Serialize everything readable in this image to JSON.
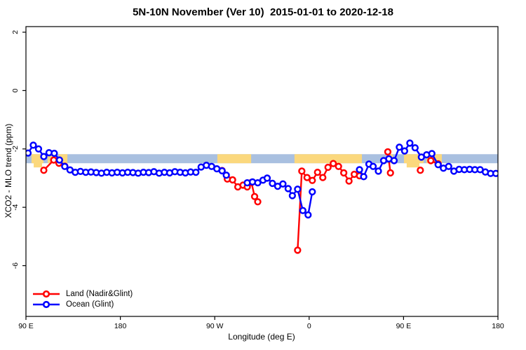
{
  "chart_data": {
    "type": "line",
    "title": "5N-10N November (Ver 10)  2015-01-01 to 2020-12-18",
    "xlabel": "Longitude (deg E)",
    "ylabel": "XCO2 - MLO trend (ppm)",
    "xlim": [
      90,
      540
    ],
    "ylim": [
      -7.8,
      2.2
    ],
    "grid": false,
    "legend_position": "bottom-left",
    "x_ticks": [
      {
        "lon": 90,
        "label": "90 E"
      },
      {
        "lon": 180,
        "label": "180"
      },
      {
        "lon": 270,
        "label": "90 W"
      },
      {
        "lon": 360,
        "label": "0"
      },
      {
        "lon": 450,
        "label": "90 E"
      },
      {
        "lon": 540,
        "label": "180"
      }
    ],
    "y_ticks": [
      {
        "value": 2,
        "label": "2"
      },
      {
        "value": 0,
        "label": "0"
      },
      {
        "value": -2,
        "label": "-2"
      },
      {
        "value": -4,
        "label": "-4"
      },
      {
        "value": -6,
        "label": "-6"
      }
    ],
    "map_strip": {
      "ocean_color": "#a9c0e0",
      "land_color": "#fbd87d",
      "value_top": -2.18,
      "value_bottom": -2.49,
      "land_patches": [
        {
          "lon": [
            95.3,
            106.7
          ]
        },
        {
          "lon": [
            97.4,
            105.4
          ],
          "below": true
        },
        {
          "lon": [
            110.7,
            118.7
          ]
        },
        {
          "lon": [
            121.4,
            129.5
          ]
        },
        {
          "lon": [
            272.5,
            304.7
          ]
        },
        {
          "lon": [
            346.0,
            410.3
          ]
        },
        {
          "lon": [
            435.0,
            439.7
          ]
        },
        {
          "lon": [
            450.4,
            469.1
          ]
        },
        {
          "lon": [
            453.0,
            465.1
          ],
          "below": true
        },
        {
          "lon": [
            471.8,
            475.8
          ]
        },
        {
          "lon": [
            479.8,
            486.5
          ]
        }
      ]
    },
    "series": [
      {
        "name": "Land (Nadir&Glint)",
        "color": "#ff0000",
        "segments": [
          [
            [
              107,
              -2.73
            ],
            [
              116.5,
              -2.38
            ],
            [
              121.5,
              -2.49
            ],
            [
              127,
              -2.59
            ]
          ],
          [
            [
              277,
              -2.74
            ],
            [
              282,
              -3.03
            ],
            [
              287,
              -3.06
            ],
            [
              292,
              -3.3
            ],
            [
              297,
              -3.24
            ],
            [
              301,
              -3.3
            ],
            [
              305,
              -3.15
            ],
            [
              308,
              -3.63
            ],
            [
              311,
              -3.81
            ]
          ],
          [
            [
              349,
              -5.47
            ],
            [
              353,
              -2.76
            ],
            [
              358,
              -2.98
            ],
            [
              363,
              -3.08
            ],
            [
              368,
              -2.8
            ],
            [
              373,
              -2.98
            ],
            [
              378,
              -2.63
            ],
            [
              383,
              -2.5
            ],
            [
              388,
              -2.6
            ],
            [
              393,
              -2.82
            ],
            [
              398,
              -3.1
            ],
            [
              403,
              -2.87
            ],
            [
              408,
              -2.92
            ]
          ],
          [
            [
              435,
              -2.1
            ],
            [
              437.5,
              -2.82
            ]
          ],
          [
            [
              476,
              -2.4
            ],
            [
              483,
              -2.51
            ]
          ]
        ],
        "isolated_points": [
          [
            466,
            -2.73
          ]
        ]
      },
      {
        "name": "Ocean (Glint)",
        "color": "#0000ff",
        "segments": [
          [
            [
              92,
              -2.14
            ],
            [
              97,
              -1.87
            ],
            [
              102,
              -2.0
            ],
            [
              107,
              -2.26
            ],
            [
              112,
              -2.13
            ],
            [
              117,
              -2.15
            ],
            [
              122,
              -2.38
            ],
            [
              127,
              -2.6
            ],
            [
              132,
              -2.72
            ],
            [
              137,
              -2.8
            ],
            [
              142,
              -2.77
            ],
            [
              147,
              -2.8
            ],
            [
              152,
              -2.79
            ],
            [
              157,
              -2.81
            ],
            [
              162,
              -2.83
            ],
            [
              167,
              -2.8
            ],
            [
              172,
              -2.82
            ],
            [
              177,
              -2.8
            ],
            [
              182,
              -2.82
            ],
            [
              187,
              -2.8
            ],
            [
              192,
              -2.81
            ],
            [
              197,
              -2.83
            ],
            [
              202,
              -2.8
            ],
            [
              207,
              -2.81
            ],
            [
              212,
              -2.78
            ],
            [
              217,
              -2.83
            ],
            [
              222,
              -2.8
            ],
            [
              227,
              -2.82
            ],
            [
              232,
              -2.78
            ],
            [
              237,
              -2.8
            ],
            [
              242,
              -2.82
            ],
            [
              247,
              -2.79
            ],
            [
              252,
              -2.8
            ],
            [
              257,
              -2.62
            ],
            [
              262,
              -2.56
            ],
            [
              267,
              -2.6
            ],
            [
              272,
              -2.68
            ],
            [
              277,
              -2.75
            ],
            [
              281,
              -2.9
            ]
          ],
          [
            [
              301,
              -3.16
            ],
            [
              306,
              -3.13
            ],
            [
              311,
              -3.16
            ],
            [
              316,
              -3.07
            ],
            [
              320,
              -3.0
            ],
            [
              325,
              -3.18
            ],
            [
              330,
              -3.28
            ],
            [
              335,
              -3.2
            ],
            [
              340,
              -3.36
            ],
            [
              344,
              -3.6
            ],
            [
              349,
              -3.38
            ],
            [
              354,
              -4.11
            ],
            [
              359,
              -4.26
            ],
            [
              363,
              -3.47
            ]
          ],
          [
            [
              408,
              -2.71
            ],
            [
              412,
              -2.95
            ],
            [
              417,
              -2.52
            ],
            [
              421,
              -2.6
            ],
            [
              426,
              -2.76
            ],
            [
              431,
              -2.4
            ],
            [
              436,
              -2.34
            ],
            [
              441,
              -2.4
            ],
            [
              446,
              -1.94
            ],
            [
              451,
              -2.07
            ],
            [
              456,
              -1.8
            ],
            [
              461,
              -1.96
            ],
            [
              467,
              -2.28
            ],
            [
              472,
              -2.2
            ],
            [
              477,
              -2.16
            ],
            [
              483,
              -2.54
            ],
            [
              488,
              -2.66
            ],
            [
              493,
              -2.6
            ],
            [
              498,
              -2.76
            ],
            [
              503,
              -2.7
            ],
            [
              508,
              -2.71
            ],
            [
              513,
              -2.7
            ],
            [
              518,
              -2.71
            ],
            [
              523,
              -2.71
            ],
            [
              528,
              -2.79
            ],
            [
              533,
              -2.84
            ],
            [
              538,
              -2.84
            ]
          ]
        ],
        "isolated_points": []
      }
    ]
  }
}
